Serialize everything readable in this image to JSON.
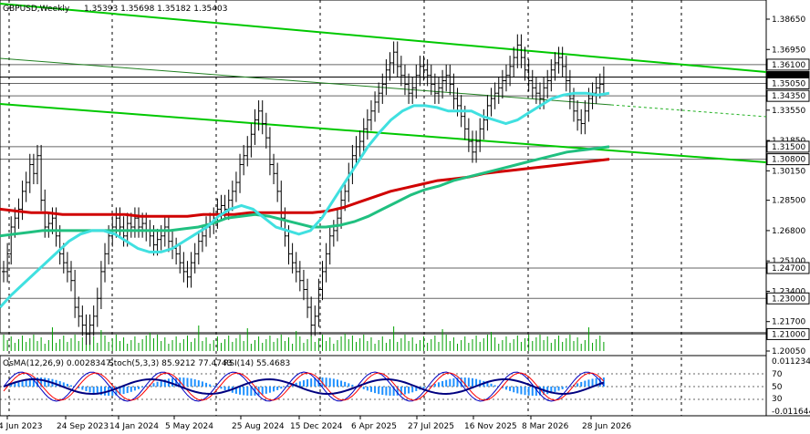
{
  "header": {
    "symbol": "GBPUSD,Weekly",
    "ohlc": "1.35393 1.35698 1.35182 1.35403"
  },
  "indicator_header": {
    "osma": "OsMA(12,26,9) 0.0028347",
    "stoch": "Stoch(5,3,3) 85.9212 77.4743",
    "rsi": "RSI(14) 55.4683"
  },
  "colors": {
    "price_bars": "#000000",
    "ema_fast": "#40e0e0",
    "ema_mid": "#20c080",
    "ema_slow": "#d00000",
    "channel": "#00c800",
    "channel_thin": "#208020",
    "grid": "#000000",
    "volume": "#00a000",
    "osma_hist": "#1e90ff",
    "stoch_main": "#0000c0",
    "stoch_signal": "#ff0000",
    "rsi": "#000080"
  },
  "chart_data": {
    "type": "line",
    "title": "GBPUSD,Weekly",
    "x_tick_labels": [
      "4 Jun 2023",
      "24 Sep 2023",
      "14 Jan 2024",
      "5 May 2024",
      "25 Aug 2024",
      "15 Dec 2024",
      "6 Apr 2025",
      "27 Jul 2025",
      "16 Nov 2025",
      "8 Mar 2026",
      "28 Jun 2026"
    ],
    "y_tick_labels": [
      "1.38650",
      "1.36950",
      "1.35100",
      "1.33550",
      "1.31850",
      "1.30150",
      "1.28500",
      "1.26800",
      "1.25100",
      "1.23400",
      "1.21700",
      "1.20050"
    ],
    "price_level_boxes": [
      "1.36100",
      "1.35403",
      "1.35050",
      "1.34350",
      "1.31500",
      "1.30800",
      "1.24700",
      "1.23000",
      "1.21000"
    ],
    "ylim": [
      1.2005,
      1.3865
    ],
    "close": [
      1.245,
      1.255,
      1.27,
      1.275,
      1.28,
      1.29,
      1.295,
      1.305,
      1.3,
      1.31,
      1.285,
      1.27,
      1.272,
      1.275,
      1.265,
      1.255,
      1.25,
      1.245,
      1.24,
      1.225,
      1.22,
      1.215,
      1.21,
      1.215,
      1.22,
      1.23,
      1.245,
      1.255,
      1.265,
      1.27,
      1.275,
      1.27,
      1.265,
      1.272,
      1.27,
      1.275,
      1.27,
      1.272,
      1.268,
      1.265,
      1.26,
      1.263,
      1.265,
      1.27,
      1.262,
      1.258,
      1.255,
      1.25,
      1.245,
      1.242,
      1.25,
      1.255,
      1.262,
      1.265,
      1.27,
      1.272,
      1.275,
      1.28,
      1.282,
      1.28,
      1.285,
      1.29,
      1.295,
      1.305,
      1.31,
      1.315,
      1.322,
      1.33,
      1.335,
      1.328,
      1.32,
      1.305,
      1.3,
      1.29,
      1.275,
      1.265,
      1.255,
      1.25,
      1.245,
      1.24,
      1.235,
      1.225,
      1.215,
      1.22,
      1.235,
      1.245,
      1.255,
      1.265,
      1.268,
      1.275,
      1.285,
      1.29,
      1.3,
      1.31,
      1.315,
      1.318,
      1.325,
      1.33,
      1.335,
      1.34,
      1.345,
      1.35,
      1.358,
      1.362,
      1.368,
      1.36,
      1.355,
      1.35,
      1.345,
      1.348,
      1.355,
      1.36,
      1.358,
      1.355,
      1.35,
      1.345,
      1.348,
      1.352,
      1.355,
      1.35,
      1.342,
      1.338,
      1.332,
      1.325,
      1.318,
      1.312,
      1.318,
      1.325,
      1.33,
      1.338,
      1.342,
      1.345,
      1.348,
      1.352,
      1.355,
      1.36,
      1.365,
      1.372,
      1.365,
      1.358,
      1.352,
      1.348,
      1.345,
      1.342,
      1.348,
      1.352,
      1.358,
      1.362,
      1.365,
      1.36,
      1.352,
      1.342,
      1.335,
      1.33,
      1.328,
      1.335,
      1.342,
      1.345,
      1.348,
      1.35,
      1.354
    ],
    "series": [
      {
        "name": "",
        "color_key": "ema_fast",
        "values": [
          1.225,
          1.232,
          1.238,
          1.244,
          1.25,
          1.256,
          1.262,
          1.266,
          1.268,
          1.268,
          1.266,
          1.262,
          1.258,
          1.256,
          1.256,
          1.258,
          1.262,
          1.266,
          1.27,
          1.276,
          1.28,
          1.282,
          1.28,
          1.275,
          1.27,
          1.268,
          1.266,
          1.268,
          1.275,
          1.285,
          1.295,
          1.305,
          1.315,
          1.323,
          1.33,
          1.335,
          1.338,
          1.338,
          1.337,
          1.335,
          1.335,
          1.335,
          1.332,
          1.33,
          1.328,
          1.33,
          1.334,
          1.338,
          1.342,
          1.344,
          1.345,
          1.345,
          1.344,
          1.345
        ]
      },
      {
        "name": "",
        "color_key": "ema_mid",
        "values": [
          1.265,
          1.266,
          1.267,
          1.268,
          1.268,
          1.268,
          1.268,
          1.268,
          1.268,
          1.268,
          1.268,
          1.268,
          1.268,
          1.269,
          1.27,
          1.272,
          1.275,
          1.276,
          1.277,
          1.276,
          1.274,
          1.272,
          1.27,
          1.27,
          1.271,
          1.273,
          1.276,
          1.28,
          1.284,
          1.288,
          1.291,
          1.293,
          1.296,
          1.298,
          1.3,
          1.302,
          1.304,
          1.306,
          1.308,
          1.31,
          1.312,
          1.313,
          1.314,
          1.315
        ]
      },
      {
        "name": "",
        "color_key": "ema_slow",
        "values": [
          1.28,
          1.279,
          1.278,
          1.278,
          1.277,
          1.277,
          1.277,
          1.277,
          1.277,
          1.276,
          1.276,
          1.276,
          1.276,
          1.277,
          1.277,
          1.277,
          1.278,
          1.278,
          1.278,
          1.278,
          1.278,
          1.279,
          1.281,
          1.284,
          1.287,
          1.29,
          1.292,
          1.294,
          1.296,
          1.297,
          1.298,
          1.3,
          1.301,
          1.302,
          1.303,
          1.304,
          1.305,
          1.306,
          1.307,
          1.308
        ]
      }
    ]
  }
}
